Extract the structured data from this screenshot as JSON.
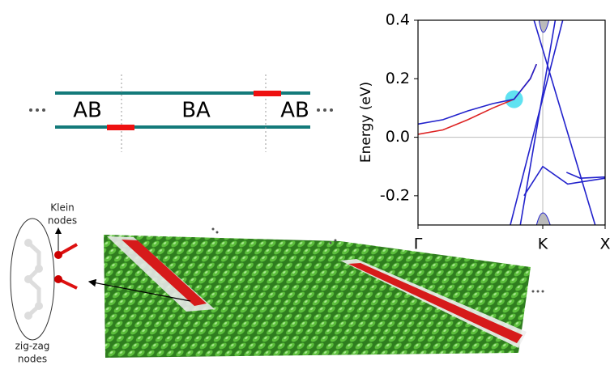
{
  "diagram": {
    "stacking": [
      "AB",
      "BA",
      "AB"
    ],
    "klein": [
      "Klein",
      "nodes"
    ],
    "zigzag": [
      "zig-zag",
      "nodes"
    ]
  },
  "chart_data": {
    "type": "line",
    "ylabel": "Energy (eV)",
    "xlim": [
      0,
      1.5
    ],
    "ylim": [
      -0.3,
      0.4
    ],
    "xticks": [
      {
        "value": 0,
        "label": "Γ"
      },
      {
        "value": 1,
        "label": "K"
      },
      {
        "value": 1.5,
        "label": "X"
      }
    ],
    "yticks": [
      -0.2,
      {
        "value": 0,
        "label": "0.0"
      },
      0.2,
      0.4
    ],
    "highlight": [
      0.77,
      0.13
    ],
    "series": [
      {
        "color": "#dd2222",
        "x": [
          0,
          0.2,
          0.4,
          0.6,
          0.77,
          0.9,
          0.95
        ],
        "values": [
          0.01,
          0.025,
          0.06,
          0.1,
          0.13,
          0.2,
          0.25
        ]
      },
      {
        "color": "#2222cc",
        "x": [
          0,
          0.2,
          0.4,
          0.6,
          0.77,
          0.9,
          0.95
        ],
        "values": [
          0.045,
          0.06,
          0.09,
          0.115,
          0.13,
          0.2,
          0.25
        ]
      },
      {
        "color": "#2222cc",
        "x": [
          0.74,
          1.16
        ],
        "values": [
          -0.3,
          0.4
        ]
      },
      {
        "color": "#2222cc",
        "x": [
          0.93,
          1.42
        ],
        "values": [
          0.4,
          -0.3
        ]
      },
      {
        "color": "#2222cc",
        "x": [
          0.82,
          1.1
        ],
        "values": [
          -0.3,
          0.4
        ]
      },
      {
        "color": "#2222cc",
        "x": [
          1.19,
          1.3,
          1.5
        ],
        "values": [
          -0.12,
          -0.14,
          -0.136
        ]
      },
      {
        "color": "#2222cc",
        "x": [
          0.85,
          1.0,
          1.2,
          1.5
        ],
        "values": [
          -0.2,
          -0.1,
          -0.16,
          -0.14
        ]
      }
    ]
  }
}
